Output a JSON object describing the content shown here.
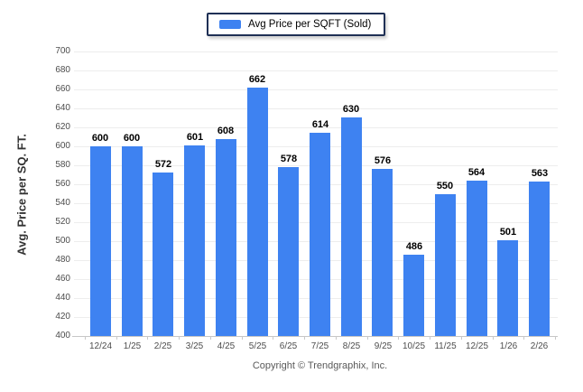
{
  "chart_data": {
    "type": "bar",
    "title": "",
    "legend_label": "Avg Price per SQFT (Sold)",
    "legend_position": "top-center",
    "categories": [
      "12/24",
      "1/25",
      "2/25",
      "3/25",
      "4/25",
      "5/25",
      "6/25",
      "7/25",
      "8/25",
      "9/25",
      "10/25",
      "11/25",
      "12/25",
      "1/26",
      "2/26"
    ],
    "values": [
      600,
      600,
      572,
      601,
      608,
      662,
      578,
      614,
      630,
      576,
      486,
      550,
      564,
      501,
      563
    ],
    "xlabel": "",
    "ylabel": "Avg. Price per SQ. FT.",
    "ylim": [
      400,
      700
    ],
    "yticks": [
      400,
      420,
      440,
      460,
      480,
      500,
      520,
      540,
      560,
      580,
      600,
      620,
      640,
      660,
      680,
      700
    ],
    "grid": true,
    "bar_color": "#3e82f1"
  },
  "footer": {
    "copyright": "Copyright © Trendgraphix, Inc."
  }
}
